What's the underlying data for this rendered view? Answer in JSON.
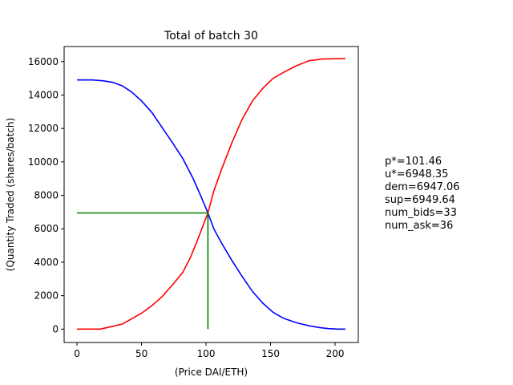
{
  "chart_data": {
    "type": "line",
    "title": "Total of batch 30",
    "xlabel": "(Price DAI/ETH)",
    "ylabel": "(Quantity Traded (shares/batch)",
    "xlim": [
      -10,
      218
    ],
    "ylim": [
      -800,
      16900
    ],
    "xticks": [
      0,
      50,
      100,
      150,
      200
    ],
    "yticks": [
      0,
      2000,
      4000,
      6000,
      8000,
      10000,
      12000,
      14000,
      16000
    ],
    "grid": false,
    "legend": "none",
    "series": [
      {
        "color": "#0000ff",
        "x": [
          0,
          12,
          20,
          28,
          35,
          42,
          50,
          58,
          66,
          74,
          82,
          90,
          96,
          101.46,
          106,
          112,
          120,
          128,
          136,
          144,
          152,
          160,
          170,
          180,
          188,
          195,
          202,
          208
        ],
        "y": [
          14900,
          14900,
          14850,
          14750,
          14550,
          14200,
          13650,
          12950,
          12050,
          11150,
          10200,
          9000,
          7950,
          6950,
          6000,
          5150,
          4100,
          3150,
          2250,
          1550,
          1000,
          650,
          380,
          200,
          90,
          30,
          0,
          0
        ]
      },
      {
        "color": "#ff0000",
        "x": [
          0,
          10,
          18,
          25,
          35,
          42,
          50,
          58,
          66,
          74,
          82,
          88,
          93,
          97,
          101.46,
          106,
          112,
          120,
          128,
          136,
          144,
          152,
          160,
          170,
          180,
          190,
          200,
          208
        ],
        "y": [
          0,
          0,
          0,
          120,
          300,
          600,
          950,
          1400,
          1950,
          2650,
          3400,
          4300,
          5250,
          6050,
          6950,
          8250,
          9550,
          11150,
          12550,
          13650,
          14400,
          15000,
          15350,
          15750,
          16050,
          16150,
          16170,
          16170
        ]
      },
      {
        "color": "#008000",
        "x": [
          0,
          101.46
        ],
        "y": [
          6948.35,
          6948.35
        ]
      },
      {
        "color": "#008000",
        "x": [
          101.46,
          101.46
        ],
        "y": [
          0,
          6948.35
        ]
      }
    ]
  },
  "stats": {
    "p": "p*=101.46",
    "u": "u*=6948.35",
    "dem": "dem=6947.06",
    "sup": "sup=6949.64",
    "bids": "num_bids=33",
    "ask": "num_ask=36"
  }
}
